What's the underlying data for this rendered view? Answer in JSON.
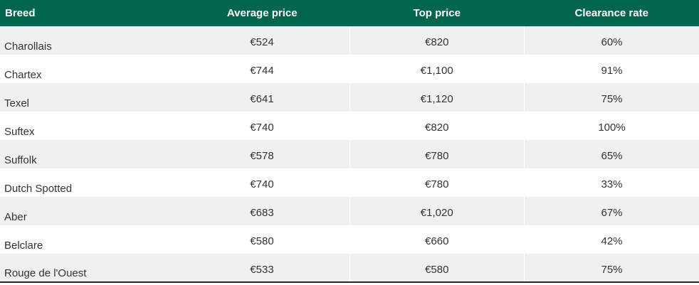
{
  "colors": {
    "header_bg": "#02664d",
    "header_text": "#ffffff",
    "stripe_bg": "#f0f0f0",
    "row_bg": "#ffffff",
    "body_text": "#333333"
  },
  "chart_data": {
    "type": "table",
    "title": "",
    "columns": [
      "Breed",
      "Average price",
      "Top price",
      "Clearance rate"
    ],
    "rows": [
      [
        "Charollais",
        "€524",
        "€820",
        "60%"
      ],
      [
        "Chartex",
        "€744",
        "€1,100",
        "91%"
      ],
      [
        "Texel",
        "€641",
        "€1,120",
        "75%"
      ],
      [
        "Suftex",
        "€740",
        "€820",
        "100%"
      ],
      [
        "Suffolk",
        "€578",
        "€780",
        "65%"
      ],
      [
        "Dutch Spotted",
        "€740",
        "€780",
        "33%"
      ],
      [
        "Aber",
        "€683",
        "€1,020",
        "67%"
      ],
      [
        "Belclare",
        "€580",
        "€660",
        "42%"
      ],
      [
        "Rouge de l'Ouest",
        "€533",
        "€580",
        "75%"
      ]
    ],
    "layout": {
      "header_align": [
        "left",
        "center",
        "center",
        "center"
      ],
      "body_align": [
        "left",
        "center",
        "center",
        "center"
      ],
      "striped_rows": "odd",
      "grid": "off"
    }
  }
}
